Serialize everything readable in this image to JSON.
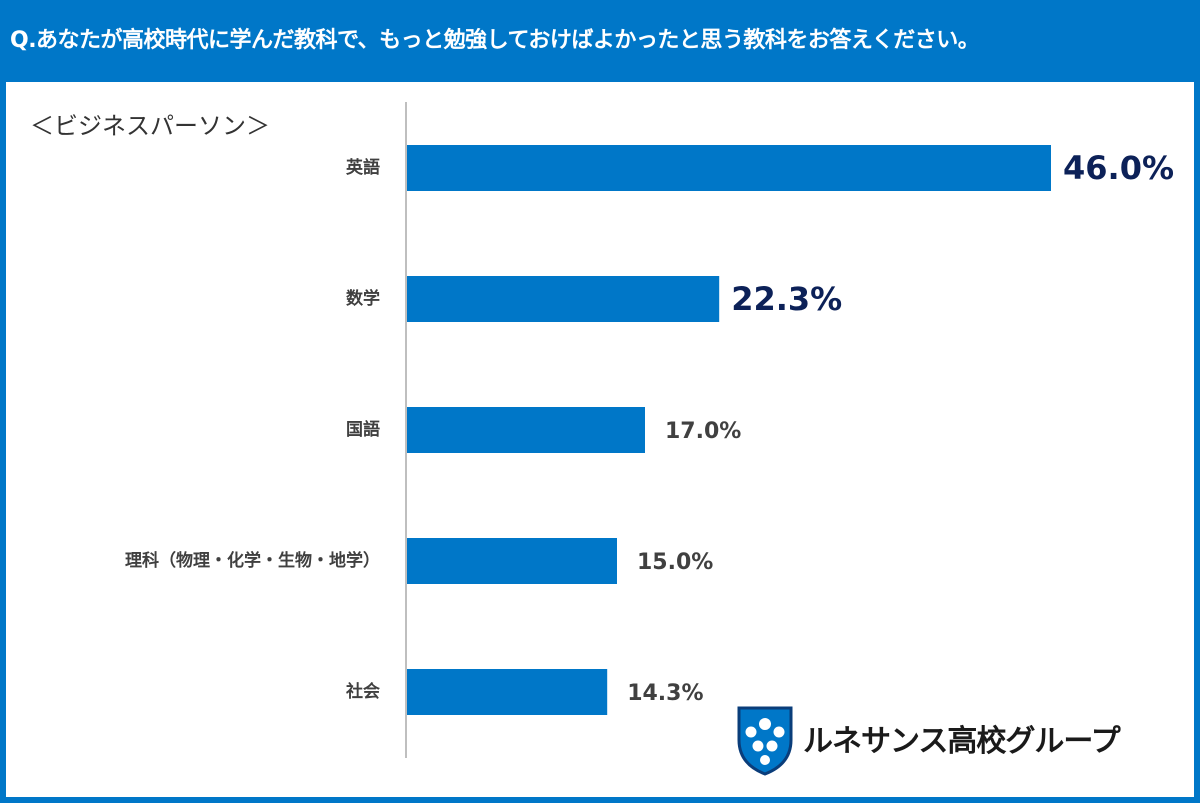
{
  "question": "Q.あなたが高校時代に学んだ教科で、もっと勉強しておけばよかったと思う教科をお答えください。",
  "segment": "＜ビジネスパーソン＞",
  "logo_text": "ルネサンス高校グループ",
  "colors": {
    "header": "#0077c8",
    "bar": "#0077c8",
    "highlight_value": "#0c2158"
  },
  "chart_data": {
    "type": "bar",
    "orientation": "horizontal",
    "categories": [
      "英語",
      "数学",
      "国語",
      "理科（物理・化学・生物・地学）",
      "社会"
    ],
    "values": [
      46.0,
      22.3,
      17.0,
      15.0,
      14.3
    ],
    "value_labels": [
      "46.0%",
      "22.3%",
      "17.0%",
      "15.0%",
      "14.3%"
    ],
    "highlighted": [
      true,
      true,
      false,
      false,
      false
    ],
    "title": "",
    "xlabel": "",
    "ylabel": ""
  }
}
